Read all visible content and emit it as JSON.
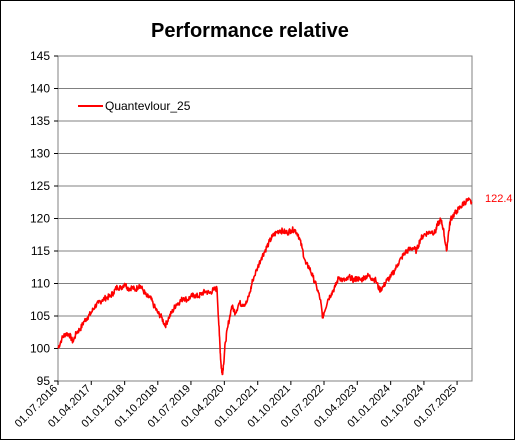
{
  "chart_data": {
    "type": "line",
    "title": "Performance relative",
    "xlabel": "",
    "ylabel": "",
    "ylim": [
      95,
      145
    ],
    "y_ticks": [
      "145",
      "140",
      "135",
      "130",
      "125",
      "120",
      "115",
      "110",
      "105",
      "100",
      "95"
    ],
    "x_ticks": [
      "01.07.2016",
      "01.04.2017",
      "01.01.2018",
      "01.10.2018",
      "01.07.2019",
      "01.04.2020",
      "01.01.2021",
      "01.10.2021",
      "01.07.2022",
      "01.04.2023",
      "01.01.2024",
      "01.10.2024",
      "01.07.2025"
    ],
    "grid": true,
    "legend_position": "top-left",
    "end_label": "122.4",
    "series": [
      {
        "name": "Quantevlour_25",
        "color": "#ff0000",
        "points": [
          [
            "2016-07-01",
            100.0
          ],
          [
            "2016-08-01",
            101.5
          ],
          [
            "2016-09-01",
            102.3
          ],
          [
            "2016-10-01",
            102.2
          ],
          [
            "2016-11-01",
            101.0
          ],
          [
            "2016-12-01",
            102.5
          ],
          [
            "2017-01-01",
            103.0
          ],
          [
            "2017-02-01",
            104.2
          ],
          [
            "2017-03-01",
            104.8
          ],
          [
            "2017-04-01",
            105.5
          ],
          [
            "2017-05-01",
            106.5
          ],
          [
            "2017-06-01",
            107.0
          ],
          [
            "2017-07-01",
            107.5
          ],
          [
            "2017-08-01",
            107.8
          ],
          [
            "2017-09-01",
            108.0
          ],
          [
            "2017-10-01",
            108.6
          ],
          [
            "2017-11-01",
            109.5
          ],
          [
            "2017-12-01",
            109.3
          ],
          [
            "2018-01-01",
            110.0
          ],
          [
            "2018-02-01",
            109.2
          ],
          [
            "2018-03-01",
            109.4
          ],
          [
            "2018-04-01",
            109.0
          ],
          [
            "2018-05-01",
            109.8
          ],
          [
            "2018-06-01",
            109.0
          ],
          [
            "2018-07-01",
            108.0
          ],
          [
            "2018-08-01",
            107.8
          ],
          [
            "2018-09-01",
            106.5
          ],
          [
            "2018-10-01",
            105.5
          ],
          [
            "2018-11-01",
            104.8
          ],
          [
            "2018-12-01",
            103.5
          ],
          [
            "2019-01-01",
            104.8
          ],
          [
            "2019-02-01",
            105.8
          ],
          [
            "2019-03-01",
            106.8
          ],
          [
            "2019-04-01",
            107.2
          ],
          [
            "2019-05-01",
            107.8
          ],
          [
            "2019-06-01",
            107.5
          ],
          [
            "2019-07-01",
            108.0
          ],
          [
            "2019-08-01",
            108.2
          ],
          [
            "2019-09-01",
            108.0
          ],
          [
            "2019-10-01",
            108.5
          ],
          [
            "2019-11-01",
            108.8
          ],
          [
            "2019-12-01",
            108.5
          ],
          [
            "2020-01-01",
            109.0
          ],
          [
            "2020-02-01",
            109.2
          ],
          [
            "2020-02-20",
            102.0
          ],
          [
            "2020-03-05",
            97.5
          ],
          [
            "2020-03-15",
            96.0
          ],
          [
            "2020-03-25",
            97.5
          ],
          [
            "2020-04-10",
            101.0
          ],
          [
            "2020-05-01",
            103.5
          ],
          [
            "2020-06-01",
            106.5
          ],
          [
            "2020-07-01",
            105.5
          ],
          [
            "2020-08-01",
            107.0
          ],
          [
            "2020-09-01",
            106.8
          ],
          [
            "2020-10-01",
            107.0
          ],
          [
            "2020-11-01",
            108.8
          ],
          [
            "2020-11-20",
            110.5
          ],
          [
            "2021-01-01",
            112.5
          ],
          [
            "2021-02-01",
            114.0
          ],
          [
            "2021-03-01",
            115.0
          ],
          [
            "2021-04-01",
            116.2
          ],
          [
            "2021-05-01",
            117.2
          ],
          [
            "2021-06-01",
            117.8
          ],
          [
            "2021-07-01",
            118.2
          ],
          [
            "2021-08-01",
            118.0
          ],
          [
            "2021-09-01",
            117.8
          ],
          [
            "2021-10-01",
            118.2
          ],
          [
            "2021-11-01",
            118.3
          ],
          [
            "2021-12-01",
            117.5
          ],
          [
            "2022-01-01",
            115.5
          ],
          [
            "2022-02-01",
            113.0
          ],
          [
            "2022-03-01",
            112.5
          ],
          [
            "2022-04-01",
            111.0
          ],
          [
            "2022-05-01",
            109.5
          ],
          [
            "2022-06-01",
            107.5
          ],
          [
            "2022-06-20",
            104.8
          ],
          [
            "2022-07-01",
            105.5
          ],
          [
            "2022-08-01",
            107.5
          ],
          [
            "2022-09-01",
            108.5
          ],
          [
            "2022-10-01",
            109.5
          ],
          [
            "2022-11-01",
            111.0
          ],
          [
            "2022-12-01",
            110.5
          ],
          [
            "2023-01-01",
            110.5
          ],
          [
            "2023-02-01",
            111.0
          ],
          [
            "2023-03-01",
            110.5
          ],
          [
            "2023-04-01",
            110.8
          ],
          [
            "2023-05-01",
            110.5
          ],
          [
            "2023-06-01",
            111.0
          ],
          [
            "2023-07-01",
            111.2
          ],
          [
            "2023-08-01",
            110.8
          ],
          [
            "2023-09-01",
            110.5
          ],
          [
            "2023-10-01",
            109.0
          ],
          [
            "2023-11-01",
            109.5
          ],
          [
            "2023-12-01",
            110.5
          ],
          [
            "2024-01-01",
            111.0
          ],
          [
            "2024-02-01",
            112.0
          ],
          [
            "2024-03-01",
            113.0
          ],
          [
            "2024-04-01",
            114.0
          ],
          [
            "2024-05-01",
            114.8
          ],
          [
            "2024-06-01",
            115.2
          ],
          [
            "2024-07-01",
            115.5
          ],
          [
            "2024-08-01",
            115.0
          ],
          [
            "2024-09-01",
            116.8
          ],
          [
            "2024-10-01",
            117.5
          ],
          [
            "2024-11-01",
            117.8
          ],
          [
            "2024-12-01",
            118.0
          ],
          [
            "2025-01-01",
            117.8
          ],
          [
            "2025-01-20",
            119.0
          ],
          [
            "2025-02-15",
            119.8
          ],
          [
            "2025-03-10",
            118.5
          ],
          [
            "2025-04-05",
            115.0
          ],
          [
            "2025-04-20",
            117.5
          ],
          [
            "2025-05-10",
            120.0
          ],
          [
            "2025-06-01",
            120.5
          ],
          [
            "2025-07-01",
            121.2
          ],
          [
            "2025-08-01",
            121.8
          ],
          [
            "2025-09-01",
            122.5
          ],
          [
            "2025-10-01",
            122.8
          ],
          [
            "2025-11-01",
            122.4
          ]
        ]
      }
    ]
  }
}
